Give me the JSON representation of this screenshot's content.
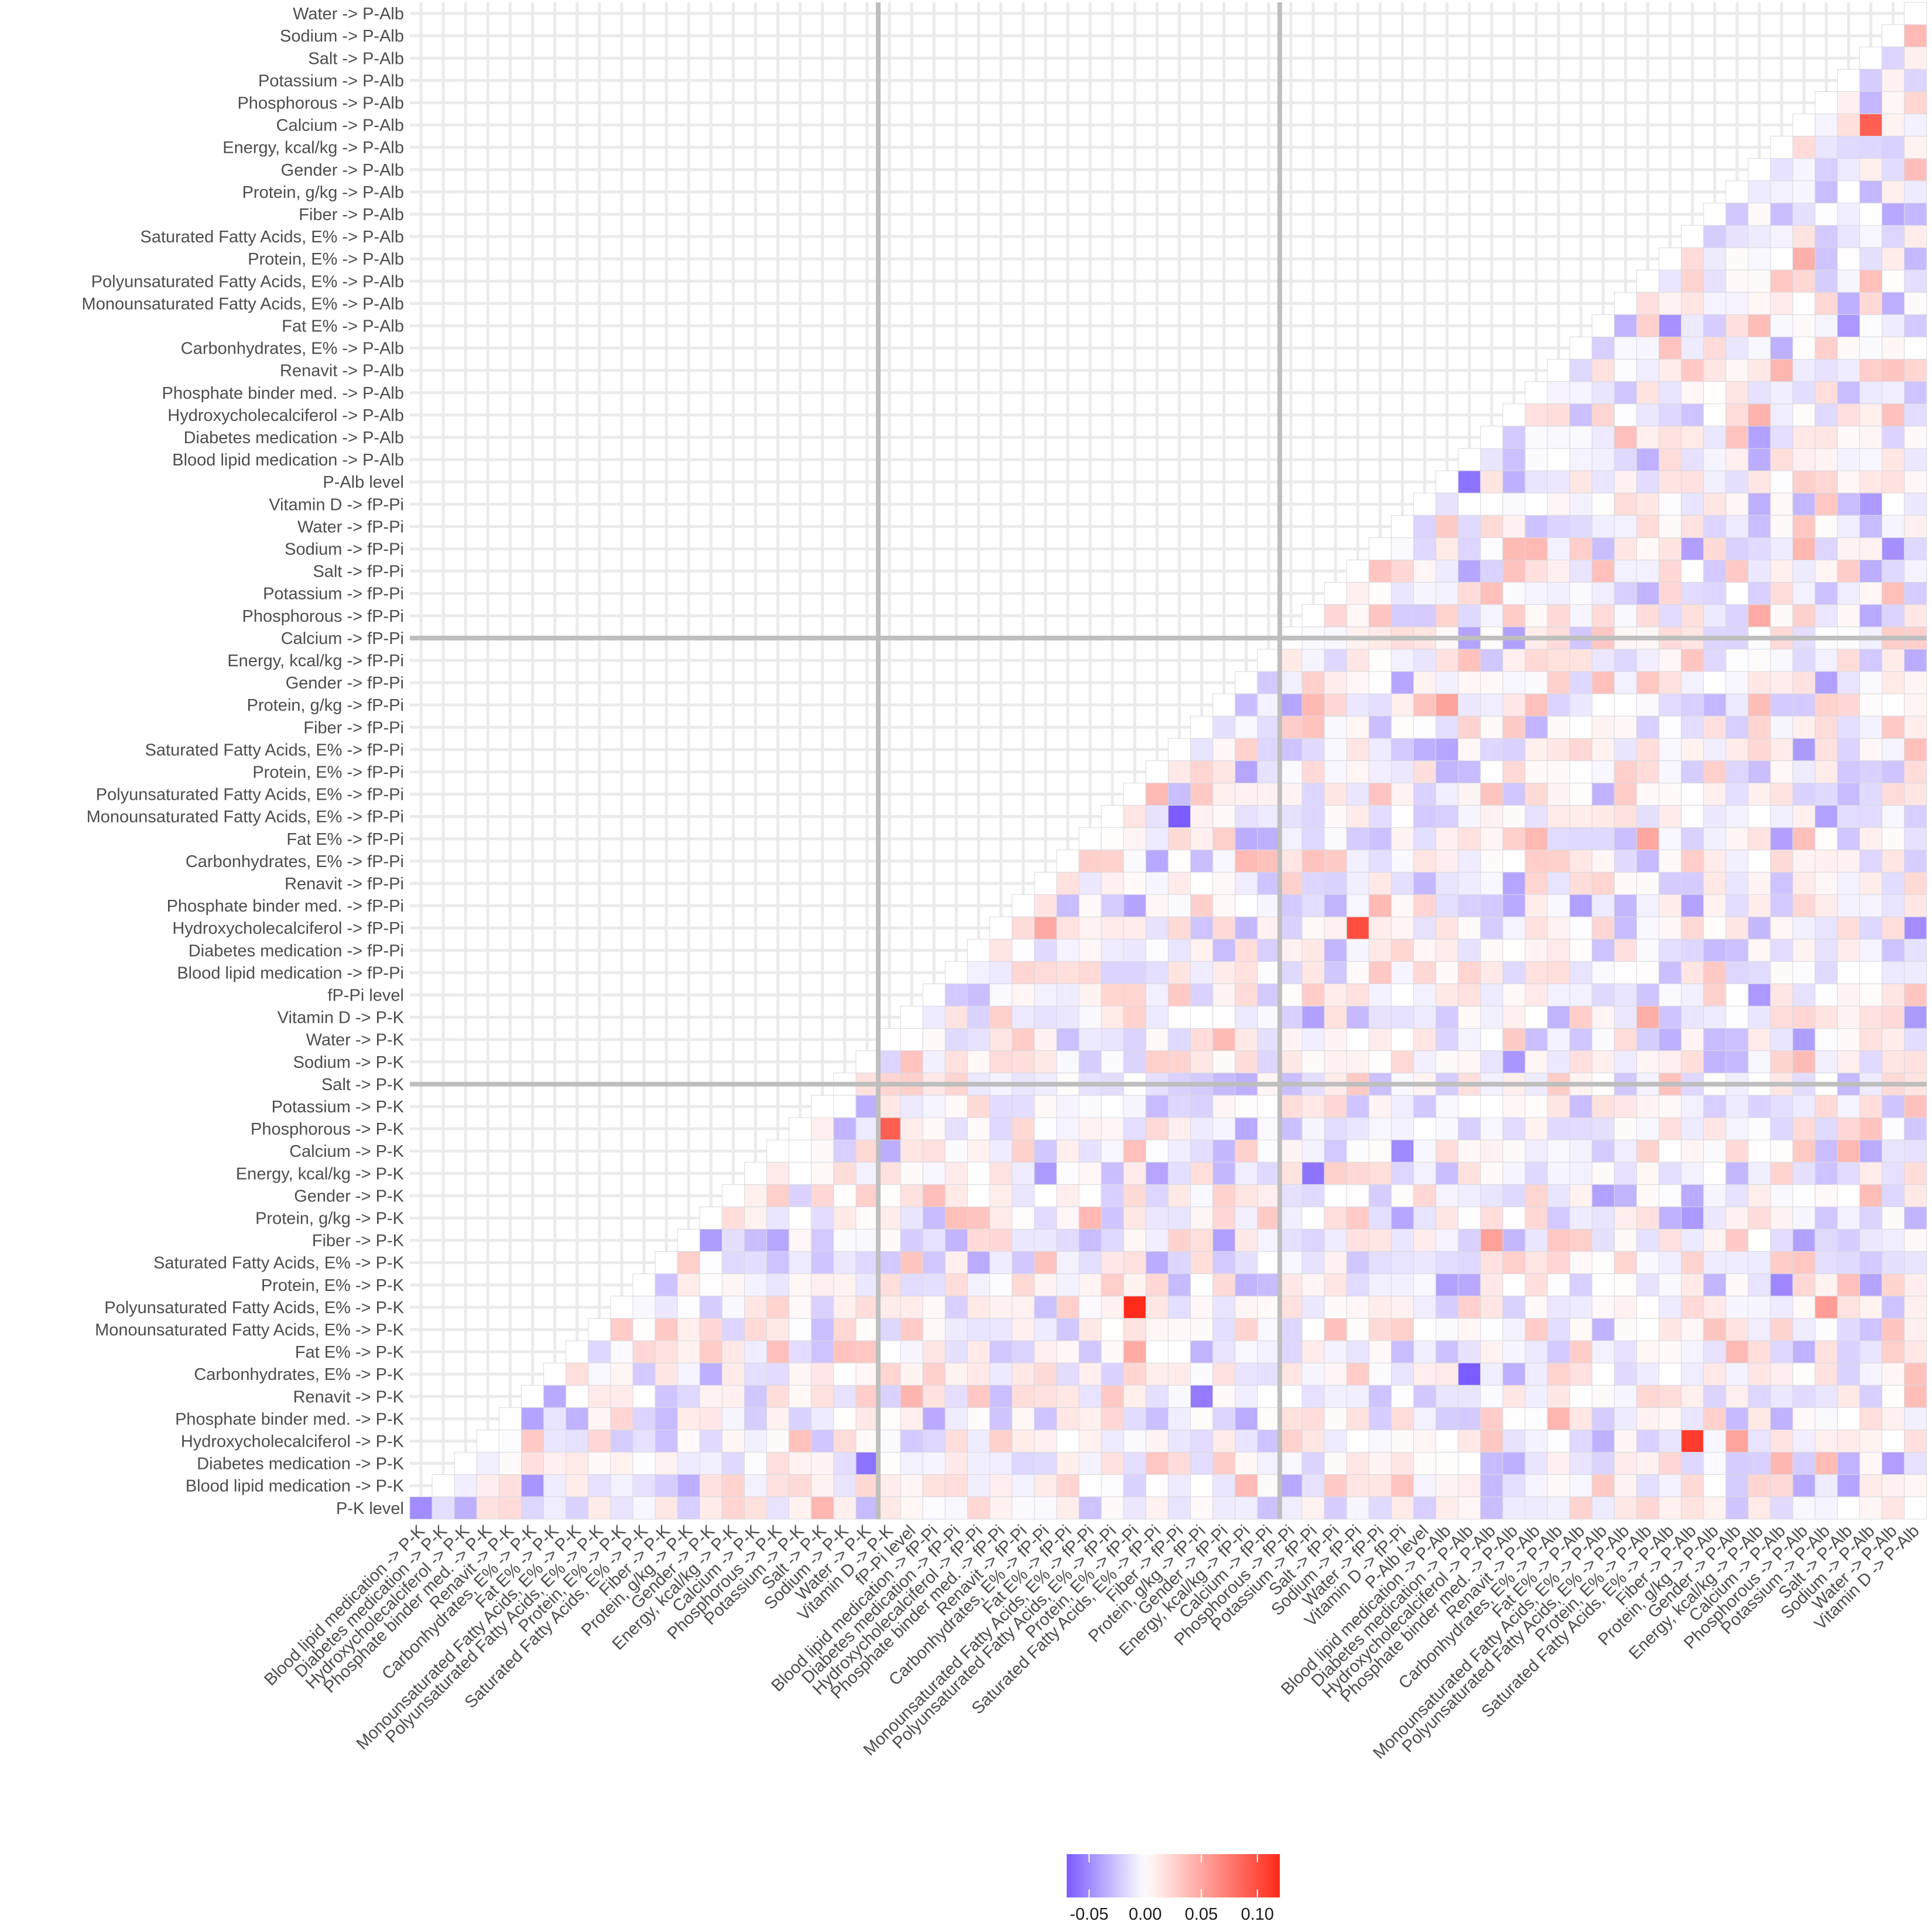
{
  "chart_data": {
    "type": "heatmap",
    "title": "",
    "xlabel": "",
    "ylabel": "",
    "rows_top_to_bottom": [
      "Water -> P-Alb",
      "Sodium -> P-Alb",
      "Salt -> P-Alb",
      "Potassium -> P-Alb",
      "Phosphorous -> P-Alb",
      "Calcium -> P-Alb",
      "Energy, kcal/kg -> P-Alb",
      "Gender -> P-Alb",
      "Protein, g/kg -> P-Alb",
      "Fiber -> P-Alb",
      "Saturated Fatty Acids, E% -> P-Alb",
      "Protein, E% -> P-Alb",
      "Polyunsaturated Fatty Acids, E% -> P-Alb",
      "Monounsaturated Fatty Acids, E% -> P-Alb",
      "Fat E% -> P-Alb",
      "Carbonhydrates, E% -> P-Alb",
      "Renavit -> P-Alb",
      "Phosphate binder med. -> P-Alb",
      "Hydroxycholecalciferol -> P-Alb",
      "Diabetes medication -> P-Alb",
      "Blood lipid medication -> P-Alb",
      "P-Alb level",
      "Vitamin D -> fP-Pi",
      "Water -> fP-Pi",
      "Sodium -> fP-Pi",
      "Salt -> fP-Pi",
      "Potassium -> fP-Pi",
      "Phosphorous -> fP-Pi",
      "Calcium -> fP-Pi",
      "Energy, kcal/kg -> fP-Pi",
      "Gender -> fP-Pi",
      "Protein, g/kg -> fP-Pi",
      "Fiber -> fP-Pi",
      "Saturated Fatty Acids, E% -> fP-Pi",
      "Protein, E% -> fP-Pi",
      "Polyunsaturated Fatty Acids, E% -> fP-Pi",
      "Monounsaturated Fatty Acids, E% -> fP-Pi",
      "Fat E% -> fP-Pi",
      "Carbonhydrates, E% -> fP-Pi",
      "Renavit -> fP-Pi",
      "Phosphate binder med. -> fP-Pi",
      "Hydroxycholecalciferol -> fP-Pi",
      "Diabetes medication -> fP-Pi",
      "Blood lipid medication -> fP-Pi",
      "fP-Pi level",
      "Vitamin D -> P-K",
      "Water -> P-K",
      "Sodium -> P-K",
      "Salt -> P-K",
      "Potassium -> P-K",
      "Phosphorous -> P-K",
      "Calcium -> P-K",
      "Energy, kcal/kg -> P-K",
      "Gender -> P-K",
      "Protein, g/kg -> P-K",
      "Fiber -> P-K",
      "Saturated Fatty Acids, E% -> P-K",
      "Protein, E% -> P-K",
      "Polyunsaturated Fatty Acids, E% -> P-K",
      "Monounsaturated Fatty Acids, E% -> P-K",
      "Fat E% -> P-K",
      "Carbonhydrates, E% -> P-K",
      "Renavit -> P-K",
      "Phosphate binder med. -> P-K",
      "Hydroxycholecalciferol -> P-K",
      "Diabetes medication -> P-K",
      "Blood lipid medication -> P-K",
      "P-K level"
    ],
    "columns_left_to_right": [
      "Blood lipid medication -> P-K",
      "Diabetes medication -> P-K",
      "Hydroxycholecalciferol -> P-K",
      "Phosphate binder med. -> P-K",
      "Renavit -> P-K",
      "Carbonhydrates, E% -> P-K",
      "Fat E% -> P-K",
      "Monounsaturated Fatty Acids, E% -> P-K",
      "Polyunsaturated Fatty Acids, E% -> P-K",
      "Protein, E% -> P-K",
      "Saturated Fatty Acids, E% -> P-K",
      "Fiber -> P-K",
      "Protein, g/kg -> P-K",
      "Gender -> P-K",
      "Energy, kcal/kg -> P-K",
      "Calcium -> P-K",
      "Phosphorous -> P-K",
      "Potassium -> P-K",
      "Salt -> P-K",
      "Sodium -> P-K",
      "Water -> P-K",
      "Vitamin D -> P-K",
      "fP-Pi level",
      "Blood lipid medication -> fP-Pi",
      "Diabetes medication -> fP-Pi",
      "Hydroxycholecalciferol -> fP-Pi",
      "Phosphate binder med. -> fP-Pi",
      "Renavit -> fP-Pi",
      "Carbonhydrates, E% -> fP-Pi",
      "Fat E% -> fP-Pi",
      "Monounsaturated Fatty Acids, E% -> fP-Pi",
      "Polyunsaturated Fatty Acids, E% -> fP-Pi",
      "Protein, E% -> fP-Pi",
      "Saturated Fatty Acids, E% -> fP-Pi",
      "Fiber -> fP-Pi",
      "Protein, g/kg -> fP-Pi",
      "Gender -> fP-Pi",
      "Energy, kcal/kg -> fP-Pi",
      "Calcium -> fP-Pi",
      "Phosphorous -> fP-Pi",
      "Potassium -> fP-Pi",
      "Salt -> fP-Pi",
      "Sodium -> fP-Pi",
      "Water -> fP-Pi",
      "Vitamin D -> fP-Pi",
      "P-Alb level",
      "Blood lipid medication -> P-Alb",
      "Diabetes medication -> P-Alb",
      "Hydroxycholecalciferol -> P-Alb",
      "Phosphate binder med. -> P-Alb",
      "Renavit -> P-Alb",
      "Carbonhydrates, E% -> P-Alb",
      "Fat E% -> P-Alb",
      "Monounsaturated Fatty Acids, E% -> P-Alb",
      "Polyunsaturated Fatty Acids, E% -> P-Alb",
      "Protein, E% -> P-Alb",
      "Saturated Fatty Acids, E% -> P-Alb",
      "Fiber -> P-Alb",
      "Protein, g/kg -> P-Alb",
      "Gender -> P-Alb",
      "Energy, kcal/kg -> P-Alb",
      "Calcium -> P-Alb",
      "Phosphorous -> P-Alb",
      "Potassium -> P-Alb",
      "Salt -> P-Alb",
      "Sodium -> P-Alb",
      "Water -> P-Alb",
      "Vitamin D -> P-Alb"
    ],
    "upper_triangle_only": true,
    "notable_values": [
      {
        "row": "Polyunsaturated Fatty Acids, E% -> P-K",
        "col": "Protein, E% -> fP-Pi",
        "value": 0.12
      },
      {
        "row": "Hydroxycholecalciferol -> P-K",
        "col": "Fiber -> P-Alb",
        "value": 0.11
      },
      {
        "row": "Hydroxycholecalciferol -> fP-Pi",
        "col": "Sodium -> fP-Pi",
        "value": 0.1
      },
      {
        "row": "Phosphorous -> P-K",
        "col": "Vitamin D -> P-K",
        "value": 0.09
      },
      {
        "row": "Calcium -> P-Alb",
        "col": "Sodium -> P-Alb",
        "value": 0.09
      },
      {
        "row": "Carbonhydrates, E% -> P-K",
        "col": "Diabetes medication -> P-Alb",
        "value": -0.07
      },
      {
        "row": "Monounsaturated Fatty Acids, E% -> fP-Pi",
        "col": "Fiber -> fP-Pi",
        "value": -0.07
      },
      {
        "row": "P-Alb level",
        "col": "Diabetes medication -> P-Alb",
        "value": -0.06
      },
      {
        "row": "Energy, kcal/kg -> P-K",
        "col": "Potassium -> fP-Pi",
        "value": -0.06
      },
      {
        "row": "Diabetes medication -> P-K",
        "col": "Water -> P-K",
        "value": -0.06
      },
      {
        "row": "P-K level",
        "col": "Blood lipid medication -> P-K",
        "value": -0.05
      }
    ],
    "reference_lines": {
      "vertical_after_column": [
        "Water -> P-K",
        "Calcium -> fP-Pi"
      ],
      "horizontal_at_row": [
        "Calcium -> fP-Pi",
        "Salt -> P-K"
      ]
    },
    "colorbar": {
      "min": -0.07,
      "max": 0.12,
      "ticks": [
        -0.05,
        0.0,
        0.05,
        0.1
      ],
      "tick_labels": [
        "-0.05",
        "0.00",
        "0.05",
        "0.10"
      ],
      "low_color": "#7b5cff",
      "mid_color": "#ffffff",
      "high_color": "#ff2a1a"
    },
    "grid": true,
    "legend_position": "bottom"
  }
}
